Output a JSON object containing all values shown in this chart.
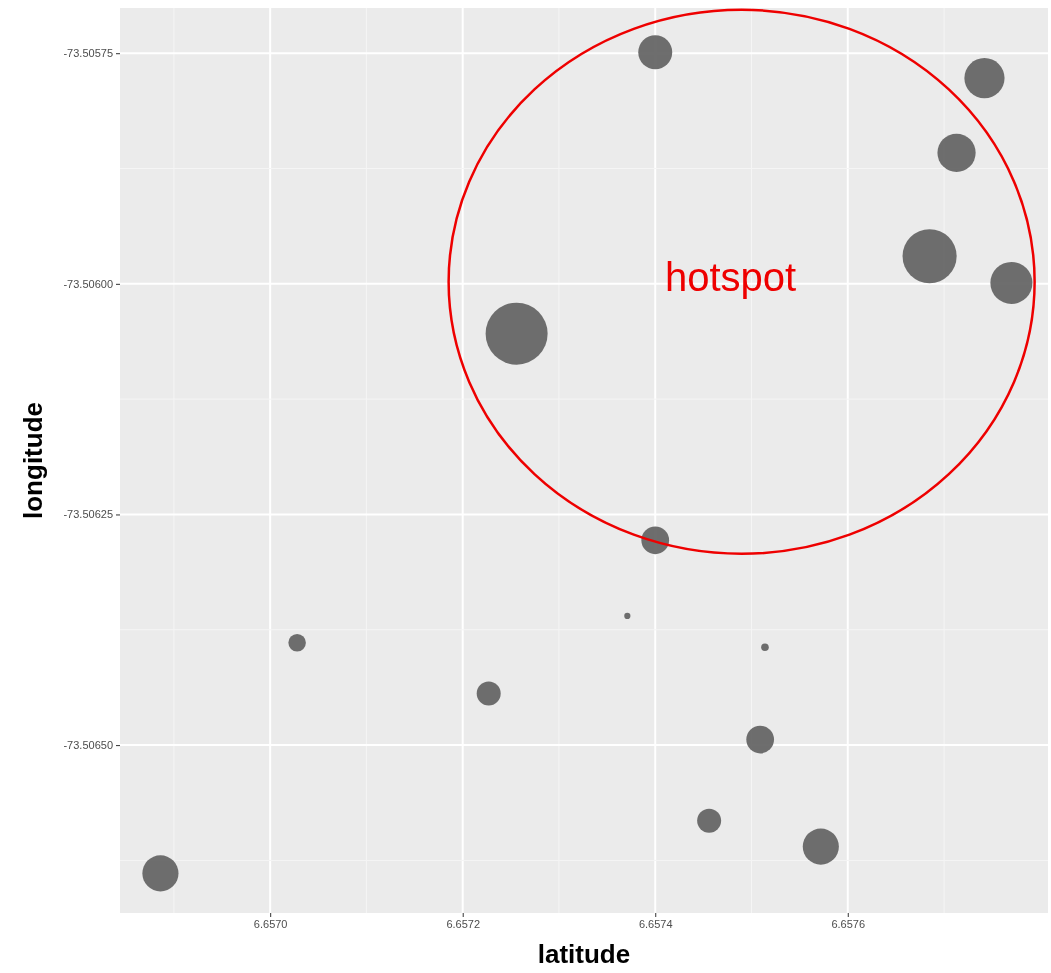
{
  "chart_data": {
    "type": "bubble",
    "xlabel": "latitude",
    "ylabel": "longitude",
    "xlim": [
      6.656844,
      6.657808
    ],
    "ylim": [
      -73.506682,
      -73.505701
    ],
    "xticks": [
      {
        "value": 6.657,
        "label": "6.6570"
      },
      {
        "value": 6.6572,
        "label": "6.6572"
      },
      {
        "value": 6.6574,
        "label": "6.6574"
      },
      {
        "value": 6.6576,
        "label": "6.6576"
      }
    ],
    "yticks": [
      {
        "value": -73.5065,
        "label": "-73.50650"
      },
      {
        "value": -73.50625,
        "label": "-73.50625"
      },
      {
        "value": -73.506,
        "label": "-73.50600"
      },
      -73.50575
    ],
    "grid": true,
    "annotations": [
      "hotspot"
    ],
    "series": [
      {
        "color": "#666666",
        "x": [
          6.6574,
          6.657742,
          6.657713,
          6.657685,
          6.65777,
          6.657256,
          6.6574,
          6.657371,
          6.657028,
          6.657514,
          6.657227,
          6.657509,
          6.657456,
          6.657572,
          6.656886
        ],
        "values": [
          -73.505749,
          -73.505777,
          -73.505858,
          -73.50597,
          -73.505999,
          -73.506054,
          -73.506278,
          -73.50636,
          -73.506389,
          -73.506394,
          -73.506444,
          -73.506494,
          -73.506582,
          -73.50661,
          -73.506639
        ],
        "sizes": [
          0.3,
          0.42,
          0.38,
          0.76,
          0.46,
          1,
          0.2,
          0.01,
          0.08,
          0.015,
          0.15,
          0.2,
          0.15,
          0.34,
          0.34
        ]
      }
    ]
  }
}
